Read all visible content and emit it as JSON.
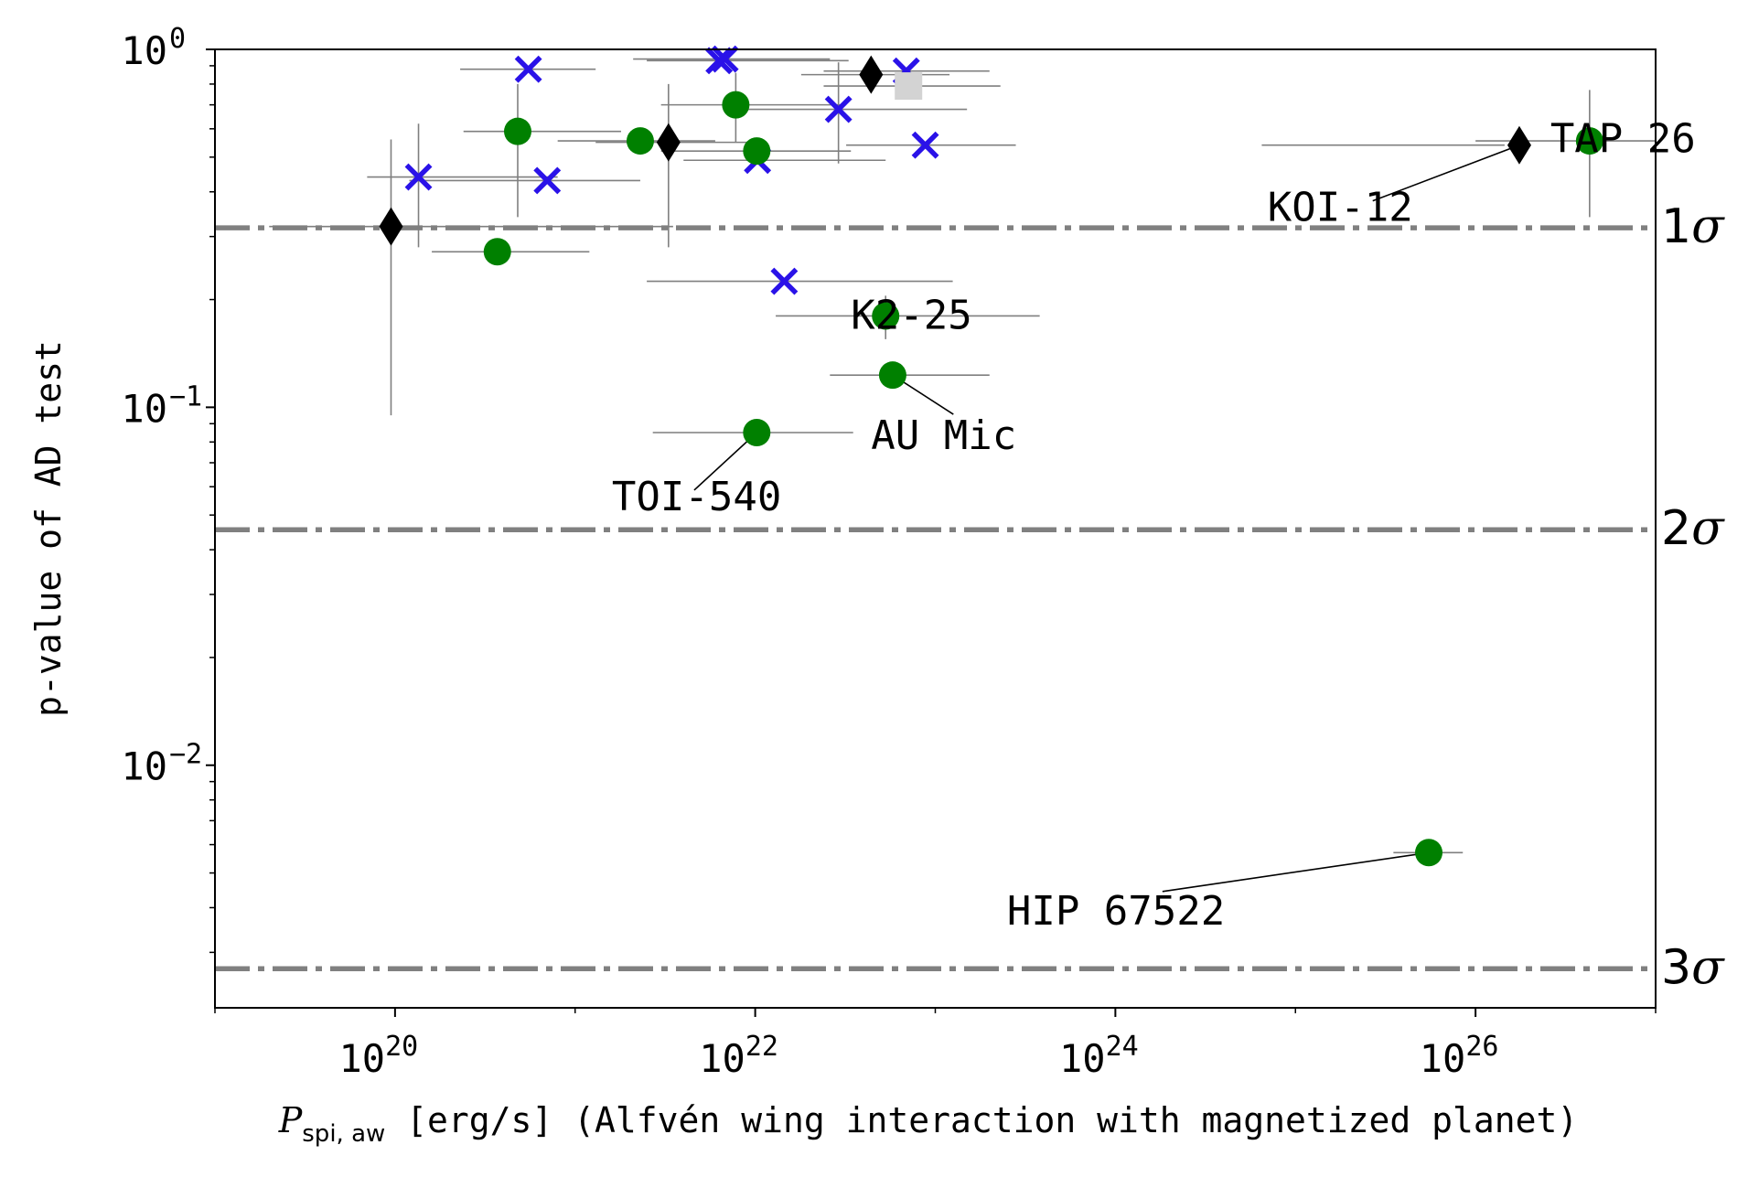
{
  "chart_data": {
    "type": "scatter",
    "title": "",
    "xlabel": {
      "symbol": "P",
      "subscript": "spi, aw",
      "text": " [erg/s] (Alfvén wing interaction with magnetized planet)"
    },
    "ylabel": "p-value of AD test",
    "xscale": "log",
    "yscale": "log",
    "xlim": [
      1e+19,
      1e+27
    ],
    "ylim": [
      0.0021,
      1.0
    ],
    "grid": false,
    "legend": "none",
    "x_ticks": [
      {
        "value": 1e+20,
        "base": "10",
        "exp": "20"
      },
      {
        "value": 1e+22,
        "base": "10",
        "exp": "22"
      },
      {
        "value": 1e+24,
        "base": "10",
        "exp": "24"
      },
      {
        "value": 1e+26,
        "base": "10",
        "exp": "26"
      }
    ],
    "y_ticks": [
      {
        "value": 1.0,
        "base": "10",
        "exp": "0"
      },
      {
        "value": 0.1,
        "base": "10",
        "exp": "−1"
      },
      {
        "value": 0.01,
        "base": "10",
        "exp": "−2"
      }
    ],
    "sigma_lines": [
      {
        "value": 0.3173,
        "label": "1σ",
        "num": "1"
      },
      {
        "value": 0.0455,
        "label": "2σ",
        "num": "2"
      },
      {
        "value": 0.0027,
        "label": "3σ",
        "num": "3"
      }
    ],
    "colors": {
      "circle": "#008000",
      "cross": "#2a12e8",
      "diamond": "#000000",
      "square": "#d3d3d3",
      "errorbar": "#7f7f7f",
      "sigma_line": "#808080"
    },
    "points": [
      {
        "marker": "diamond",
        "x": 9.5e+19,
        "y": 0.32,
        "xerr": [
          2e+19,
          3.5e+21
        ],
        "yerr": [
          0.095,
          0.56
        ]
      },
      {
        "marker": "cross",
        "x": 1.35e+20,
        "y": 0.44,
        "xerr": [
          7e+19,
          8e+20
        ],
        "yerr": [
          0.28,
          0.62
        ]
      },
      {
        "marker": "circle",
        "x": 3.7e+20,
        "y": 0.272,
        "xerr": [
          1.6e+20,
          1.2e+21
        ],
        "yerr": null
      },
      {
        "marker": "circle",
        "x": 4.8e+20,
        "y": 0.59,
        "xerr": [
          2.4e+20,
          1.8e+21
        ],
        "yerr": [
          0.34,
          0.8
        ]
      },
      {
        "marker": "cross",
        "x": 5.5e+20,
        "y": 0.88,
        "xerr": [
          2.3e+20,
          1.3e+21
        ],
        "yerr": null
      },
      {
        "marker": "cross",
        "x": 7e+20,
        "y": 0.43,
        "xerr": [
          1.2e+20,
          2.3e+21
        ],
        "yerr": null
      },
      {
        "marker": "circle",
        "x": 2.3e+21,
        "y": 0.555,
        "xerr": [
          8e+20,
          6e+21
        ],
        "yerr": null
      },
      {
        "marker": "diamond",
        "x": 3.3e+21,
        "y": 0.55,
        "xerr": [
          1.3e+21,
          9e+21
        ],
        "yerr": [
          0.28,
          0.8
        ]
      },
      {
        "marker": "cross",
        "x": 6.3e+21,
        "y": 0.93,
        "xerr": [
          2.5e+21,
          3.3e+22
        ],
        "yerr": null
      },
      {
        "marker": "cross",
        "x": 6.8e+21,
        "y": 0.94,
        "xerr": [
          2.1e+21,
          2.6e+22
        ],
        "yerr": null
      },
      {
        "marker": "circle",
        "x": 7.8e+21,
        "y": 0.7,
        "xerr": [
          3e+21,
          3.2e+22
        ],
        "yerr": [
          0.55,
          0.86
        ]
      },
      {
        "marker": "cross",
        "x": 1.03e+22,
        "y": 0.49,
        "xerr": [
          4e+21,
          5.3e+22
        ],
        "yerr": null
      },
      {
        "marker": "circle",
        "x": 1.02e+22,
        "y": 0.52,
        "xerr": [
          3e+21,
          3.4e+22
        ],
        "yerr": null
      },
      {
        "marker": "cross",
        "x": 1.45e+22,
        "y": 0.225,
        "xerr": [
          2.5e+21,
          1.25e+23
        ],
        "yerr": null
      },
      {
        "marker": "cross",
        "x": 2.9e+22,
        "y": 0.68,
        "xerr": [
          9e+21,
          1.5e+23
        ],
        "yerr": [
          0.48,
          0.92
        ]
      },
      {
        "marker": "diamond",
        "x": 4.4e+22,
        "y": 0.85,
        "xerr": [
          1.8e+22,
          1.2e+23
        ],
        "yerr": null
      },
      {
        "marker": "cross",
        "x": 6.9e+22,
        "y": 0.87,
        "xerr": [
          2.4e+22,
          2e+23
        ],
        "yerr": null
      },
      {
        "marker": "square",
        "x": 7.1e+22,
        "y": 0.79,
        "xerr": [
          2.4e+22,
          2.3e+23
        ],
        "yerr": null
      },
      {
        "marker": "cross",
        "x": 8.8e+22,
        "y": 0.54,
        "xerr": [
          3.2e+22,
          2.8e+23
        ],
        "yerr": null
      },
      {
        "marker": "circle",
        "x": 5.3e+22,
        "y": 0.18,
        "xerr": [
          1.3e+22,
          3.8e+23
        ],
        "yerr": [
          0.155,
          0.205
        ],
        "label": "K2-25"
      },
      {
        "marker": "circle",
        "x": 5.8e+22,
        "y": 0.123,
        "xerr": [
          2.6e+22,
          2e+23
        ],
        "yerr": null,
        "label": "AU Mic"
      },
      {
        "marker": "circle",
        "x": 1.02e+22,
        "y": 0.085,
        "xerr": [
          2.7e+21,
          3.5e+22
        ],
        "yerr": null,
        "label": "TOI-540"
      },
      {
        "marker": "diamond",
        "x": 1.75e+26,
        "y": 0.54,
        "xerr": [
          6.5e+24,
          1.45e+26
        ],
        "yerr": null,
        "label": "KOI-12"
      },
      {
        "marker": "circle",
        "x": 4.3e+26,
        "y": 0.555,
        "xerr": [
          1e+26,
          1.25e+27
        ],
        "yerr": [
          0.34,
          0.77
        ],
        "label": "TAP 26"
      },
      {
        "marker": "circle",
        "x": 5.5e+25,
        "y": 0.0057,
        "xerr": [
          3.5e+25,
          8.5e+25
        ],
        "yerr": null,
        "label": "HIP 67522"
      }
    ],
    "annotations": [
      {
        "text": "K2-25",
        "point": 19,
        "tx": 3.4e+22,
        "ty": 0.18,
        "leader": false
      },
      {
        "text": "AU Mic",
        "point": 20,
        "tx": 4.4e+22,
        "ty": 0.083,
        "leader": true
      },
      {
        "text": "TOI-540",
        "point": 21,
        "tx": 1.6e+21,
        "ty": 0.056,
        "leader": true
      },
      {
        "text": "KOI-12",
        "point": 22,
        "tx": 7e+24,
        "ty": 0.36,
        "leader": true
      },
      {
        "text": "TAP 26",
        "point": 23,
        "tx": 2.6e+26,
        "ty": 0.56,
        "leader": false
      },
      {
        "text": "HIP 67522",
        "point": 24,
        "tx": 2.5e+23,
        "ty": 0.0039,
        "leader": true
      }
    ]
  }
}
